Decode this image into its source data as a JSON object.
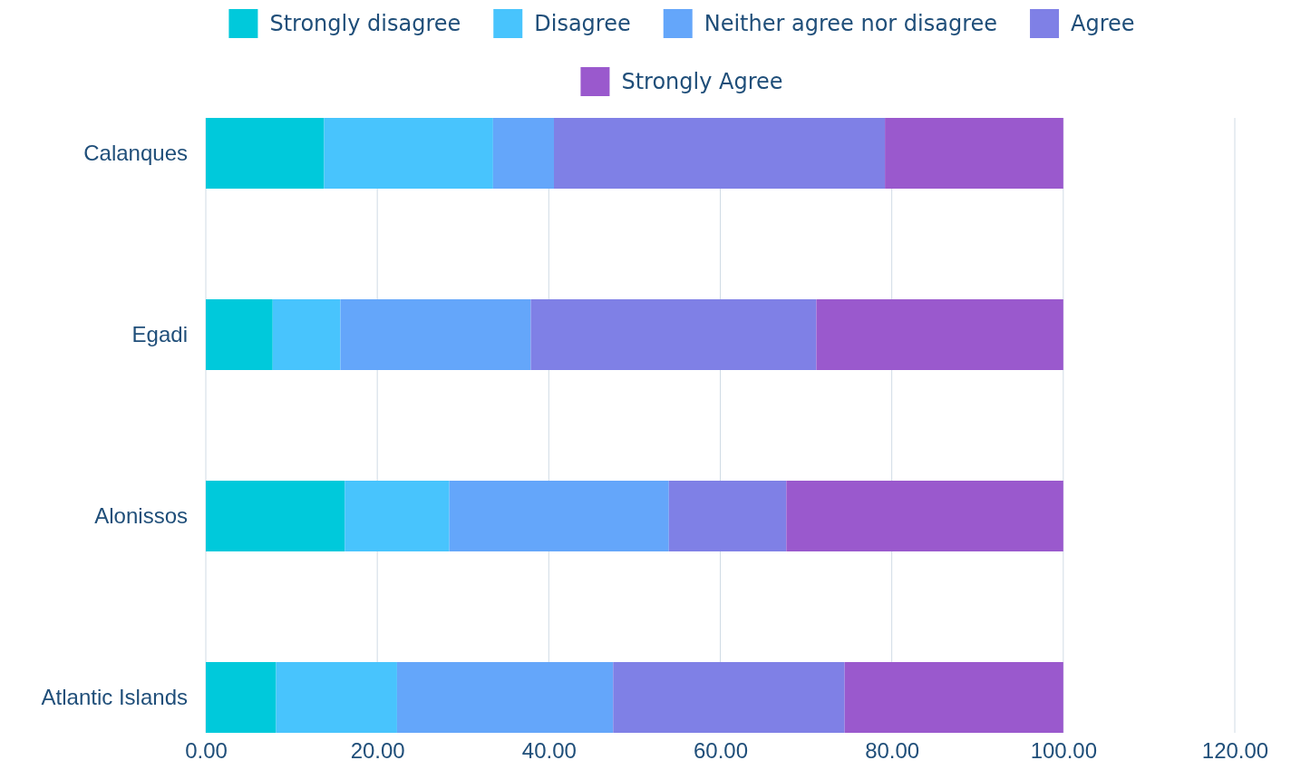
{
  "chart_data": {
    "type": "bar",
    "orientation": "horizontal",
    "stacked": true,
    "categories": [
      "Calanques",
      "Egadi",
      "Alonissos",
      "Atlantic Islands"
    ],
    "series": [
      {
        "name": "Strongly disagree",
        "color": "#00c9db",
        "values": [
          13.8,
          7.8,
          16.2,
          8.2
        ]
      },
      {
        "name": "Disagree",
        "color": "#48c4fd",
        "values": [
          19.7,
          7.9,
          12.2,
          14.1
        ]
      },
      {
        "name": "Neither agree nor disagree",
        "color": "#64a6fa",
        "values": [
          7.1,
          22.2,
          25.6,
          25.2
        ]
      },
      {
        "name": "Agree",
        "color": "#7f80e6",
        "values": [
          38.6,
          33.3,
          13.7,
          27.0
        ]
      },
      {
        "name": "Strongly Agree",
        "color": "#9a59cd",
        "values": [
          20.8,
          28.8,
          32.3,
          25.5
        ]
      }
    ],
    "xlim": [
      0,
      120
    ],
    "xticks": [
      {
        "value": 0,
        "label": "0.00"
      },
      {
        "value": 20,
        "label": "20.00"
      },
      {
        "value": 40,
        "label": "40.00"
      },
      {
        "value": 60,
        "label": "60.00"
      },
      {
        "value": 80,
        "label": "80.00"
      },
      {
        "value": 100,
        "label": "100.00"
      },
      {
        "value": 120,
        "label": "120.00"
      }
    ],
    "grid": "x",
    "legend": "top"
  }
}
